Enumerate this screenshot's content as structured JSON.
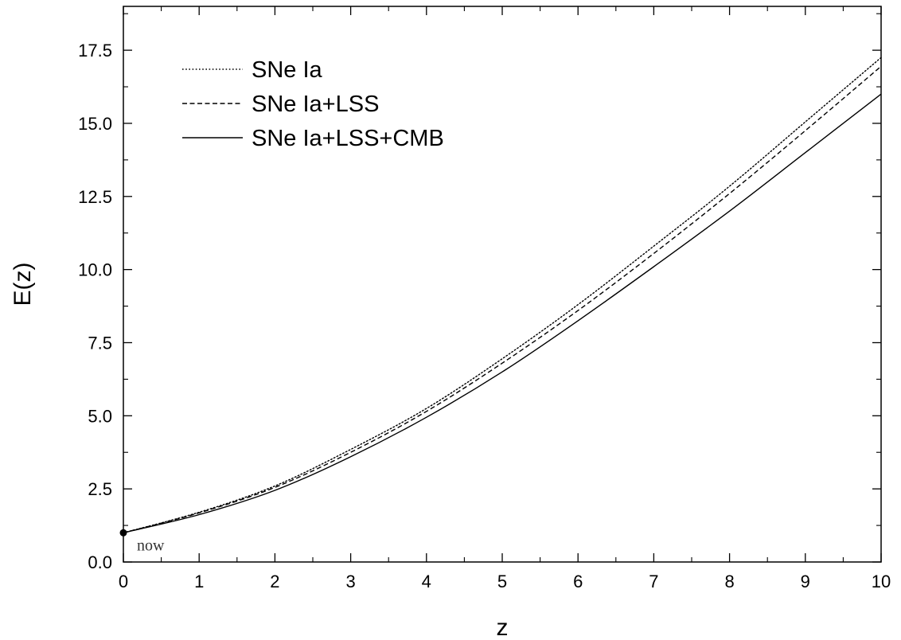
{
  "chart_data": {
    "type": "line",
    "xlabel": "z",
    "ylabel": "E(z)",
    "xlim": [
      0,
      10
    ],
    "ylim": [
      0,
      19
    ],
    "x_ticks": [
      0,
      1,
      2,
      3,
      4,
      5,
      6,
      7,
      8,
      9,
      10
    ],
    "x_tick_labels": [
      "0",
      "1",
      "2",
      "3",
      "4",
      "5",
      "6",
      "7",
      "8",
      "9",
      "10"
    ],
    "y_ticks": [
      0,
      2.5,
      5,
      7.5,
      10,
      12.5,
      15,
      17.5
    ],
    "y_tick_labels": [
      "0.0",
      "2.5",
      "5.0",
      "7.5",
      "10.0",
      "12.5",
      "15.0",
      "17.5"
    ],
    "grid": false,
    "legend_position": "top-left",
    "x": [
      0,
      1,
      2,
      3,
      4,
      5,
      6,
      7,
      8,
      9,
      10
    ],
    "series": [
      {
        "name": "SNe Ia",
        "style": "dotted",
        "values": [
          1.0,
          1.7,
          2.6,
          3.85,
          5.25,
          6.95,
          8.8,
          10.8,
          12.85,
          15.05,
          17.25
        ]
      },
      {
        "name": "SNe Ia+LSS",
        "style": "dashed",
        "values": [
          1.0,
          1.68,
          2.55,
          3.75,
          5.15,
          6.8,
          8.6,
          10.55,
          12.6,
          14.75,
          16.95
        ]
      },
      {
        "name": "SNe Ia+LSS+CMB",
        "style": "solid",
        "values": [
          1.0,
          1.62,
          2.45,
          3.6,
          4.95,
          6.5,
          8.25,
          10.1,
          12.0,
          14.0,
          16.0
        ]
      }
    ],
    "marker": {
      "x": 0,
      "y": 1.0
    },
    "annotations": [
      {
        "text": "now",
        "x": 0,
        "y": 1.0
      }
    ]
  }
}
